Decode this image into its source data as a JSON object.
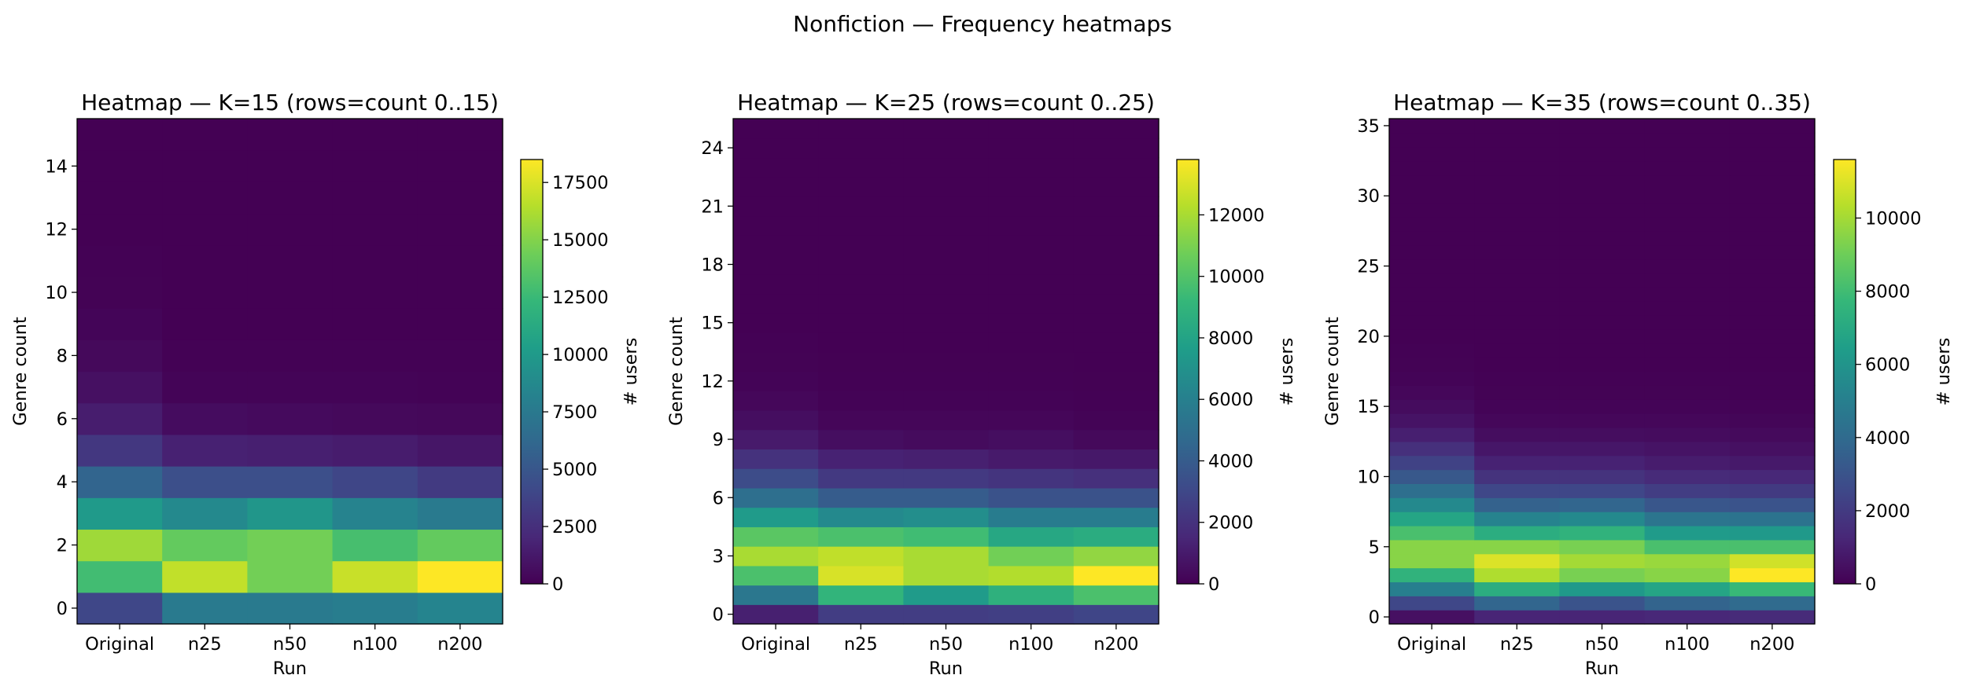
{
  "figure": {
    "suptitle": "Nonfiction — Frequency heatmaps"
  },
  "chart_data": [
    {
      "type": "heatmap",
      "title": "Heatmap — K=15 (rows=count 0..15)",
      "xlabel": "Run",
      "ylabel": "Genre count",
      "colorbar_label": "# users",
      "colormap": "viridis",
      "categories": [
        "Original",
        "n25",
        "n50",
        "n100",
        "n200"
      ],
      "rows": [
        0,
        1,
        2,
        3,
        4,
        5,
        6,
        7,
        8,
        9,
        10,
        11,
        12,
        13,
        14,
        15
      ],
      "yticks": [
        0,
        2,
        4,
        6,
        8,
        10,
        12,
        14
      ],
      "vmin": 0,
      "vmax": 18500,
      "cbar_ticks": [
        0,
        2500,
        5000,
        7500,
        10000,
        12500,
        15000,
        17500
      ],
      "cbar_tick_labels": [
        "0",
        "2500",
        "5000",
        "7500",
        "10000",
        "12500",
        "15000",
        "17500"
      ],
      "values": [
        [
          4000,
          7600,
          7600,
          7800,
          8400
        ],
        [
          12800,
          16800,
          14500,
          17000,
          18500
        ],
        [
          15800,
          14000,
          14500,
          13000,
          14000
        ],
        [
          10000,
          8700,
          9700,
          8300,
          7600
        ],
        [
          6000,
          4500,
          4500,
          3900,
          3200
        ],
        [
          3000,
          1700,
          1600,
          1400,
          1100
        ],
        [
          1500,
          600,
          500,
          400,
          350
        ],
        [
          800,
          150,
          150,
          150,
          100
        ],
        [
          400,
          50,
          50,
          50,
          30
        ],
        [
          200,
          20,
          20,
          20,
          10
        ],
        [
          80,
          0,
          0,
          0,
          0
        ],
        [
          40,
          0,
          0,
          0,
          0
        ],
        [
          20,
          0,
          0,
          0,
          0
        ],
        [
          10,
          0,
          0,
          0,
          0
        ],
        [
          0,
          0,
          0,
          0,
          0
        ],
        [
          0,
          0,
          0,
          0,
          0
        ]
      ]
    },
    {
      "type": "heatmap",
      "title": "Heatmap — K=25 (rows=count 0..25)",
      "xlabel": "Run",
      "ylabel": "Genre count",
      "colorbar_label": "# users",
      "colormap": "viridis",
      "categories": [
        "Original",
        "n25",
        "n50",
        "n100",
        "n200"
      ],
      "rows": [
        0,
        1,
        2,
        3,
        4,
        5,
        6,
        7,
        8,
        9,
        10,
        11,
        12,
        13,
        14,
        15,
        16,
        17,
        18,
        19,
        20,
        21,
        22,
        23,
        24,
        25
      ],
      "yticks": [
        0,
        3,
        6,
        9,
        12,
        15,
        18,
        21,
        24
      ],
      "vmin": 0,
      "vmax": 13800,
      "cbar_ticks": [
        0,
        2000,
        4000,
        6000,
        8000,
        10000,
        12000
      ],
      "cbar_tick_labels": [
        "0",
        "2000",
        "4000",
        "6000",
        "8000",
        "10000",
        "12000"
      ],
      "values": [
        [
          1200,
          2500,
          2500,
          2600,
          2900
        ],
        [
          5500,
          9000,
          7500,
          8800,
          9800
        ],
        [
          9800,
          13000,
          12000,
          12200,
          13800
        ],
        [
          12000,
          12500,
          12000,
          10800,
          11500
        ],
        [
          10200,
          9800,
          9500,
          8200,
          8500
        ],
        [
          7500,
          6500,
          6800,
          5800,
          5800
        ],
        [
          5000,
          4000,
          4000,
          3500,
          3500
        ],
        [
          3200,
          2300,
          2300,
          2100,
          1900
        ],
        [
          2000,
          1300,
          1200,
          1000,
          900
        ],
        [
          1000,
          500,
          400,
          500,
          300
        ],
        [
          500,
          200,
          200,
          200,
          100
        ],
        [
          250,
          80,
          80,
          80,
          50
        ],
        [
          120,
          40,
          40,
          40,
          20
        ],
        [
          60,
          20,
          20,
          20,
          10
        ],
        [
          30,
          10,
          10,
          10,
          0
        ],
        [
          15,
          0,
          0,
          0,
          0
        ],
        [
          0,
          0,
          0,
          0,
          0
        ],
        [
          0,
          0,
          0,
          0,
          0
        ],
        [
          0,
          0,
          0,
          0,
          0
        ],
        [
          0,
          0,
          0,
          0,
          0
        ],
        [
          0,
          0,
          0,
          0,
          0
        ],
        [
          0,
          0,
          0,
          0,
          0
        ],
        [
          0,
          0,
          0,
          0,
          0
        ],
        [
          0,
          0,
          0,
          0,
          0
        ],
        [
          0,
          0,
          0,
          0,
          0
        ],
        [
          0,
          0,
          0,
          0,
          0
        ]
      ]
    },
    {
      "type": "heatmap",
      "title": "Heatmap — K=35 (rows=count 0..35)",
      "xlabel": "Run",
      "ylabel": "Genre count",
      "colorbar_label": "# users",
      "colormap": "viridis",
      "categories": [
        "Original",
        "n25",
        "n50",
        "n100",
        "n200"
      ],
      "rows": [
        0,
        1,
        2,
        3,
        4,
        5,
        6,
        7,
        8,
        9,
        10,
        11,
        12,
        13,
        14,
        15,
        16,
        17,
        18,
        19,
        20,
        21,
        22,
        23,
        24,
        25,
        26,
        27,
        28,
        29,
        30,
        31,
        32,
        33,
        34,
        35
      ],
      "yticks": [
        0,
        5,
        10,
        15,
        20,
        25,
        30,
        35
      ],
      "vmin": 0,
      "vmax": 11600,
      "cbar_ticks": [
        0,
        2000,
        4000,
        6000,
        8000,
        10000
      ],
      "cbar_tick_labels": [
        "0",
        "2000",
        "4000",
        "6000",
        "8000",
        "10000"
      ],
      "values": [
        [
          500,
          1200,
          1200,
          1300,
          1400
        ],
        [
          2500,
          3800,
          3000,
          3700,
          4000
        ],
        [
          5000,
          7200,
          6200,
          6800,
          7800
        ],
        [
          7500,
          10200,
          9200,
          9500,
          11600
        ],
        [
          9500,
          11000,
          10000,
          9800,
          10800
        ],
        [
          9500,
          9500,
          9200,
          8200,
          8200
        ],
        [
          8200,
          7200,
          7500,
          6300,
          6200
        ],
        [
          6800,
          5200,
          5500,
          4500,
          4400
        ],
        [
          5500,
          3600,
          3800,
          3100,
          3000
        ],
        [
          4200,
          2500,
          2500,
          2100,
          2000
        ],
        [
          3200,
          1700,
          1700,
          1400,
          1300
        ],
        [
          2300,
          1100,
          1100,
          900,
          800
        ],
        [
          1600,
          700,
          700,
          600,
          500
        ],
        [
          1000,
          400,
          400,
          350,
          300
        ],
        [
          600,
          200,
          200,
          200,
          150
        ],
        [
          350,
          100,
          100,
          100,
          80
        ],
        [
          200,
          50,
          50,
          50,
          40
        ],
        [
          100,
          20,
          20,
          20,
          20
        ],
        [
          50,
          10,
          10,
          10,
          10
        ],
        [
          20,
          0,
          0,
          0,
          0
        ],
        [
          0,
          0,
          0,
          0,
          0
        ],
        [
          0,
          0,
          0,
          0,
          0
        ],
        [
          0,
          0,
          0,
          0,
          0
        ],
        [
          0,
          0,
          0,
          0,
          0
        ],
        [
          0,
          0,
          0,
          0,
          0
        ],
        [
          0,
          0,
          0,
          0,
          0
        ],
        [
          0,
          0,
          0,
          0,
          0
        ],
        [
          0,
          0,
          0,
          0,
          0
        ],
        [
          0,
          0,
          0,
          0,
          0
        ],
        [
          0,
          0,
          0,
          0,
          0
        ],
        [
          0,
          0,
          0,
          0,
          0
        ],
        [
          0,
          0,
          0,
          0,
          0
        ],
        [
          0,
          0,
          0,
          0,
          0
        ],
        [
          0,
          0,
          0,
          0,
          0
        ],
        [
          0,
          0,
          0,
          0,
          0
        ],
        [
          0,
          0,
          0,
          0,
          0
        ]
      ]
    }
  ]
}
